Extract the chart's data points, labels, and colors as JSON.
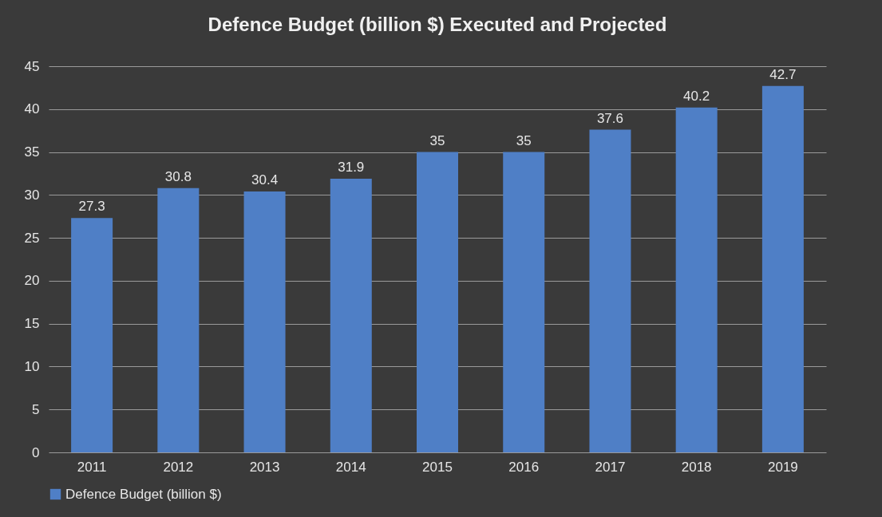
{
  "chart_data": {
    "type": "bar",
    "title": "Defence Budget (billion $) Executed and Projected",
    "categories": [
      "2011",
      "2012",
      "2013",
      "2014",
      "2015",
      "2016",
      "2017",
      "2018",
      "2019"
    ],
    "series": [
      {
        "name": "Defence Budget (billion $)",
        "color": "#4f7fc6",
        "values": [
          27.3,
          30.8,
          30.4,
          31.9,
          35,
          35,
          37.6,
          40.2,
          42.7
        ]
      }
    ],
    "ylim": [
      0,
      45
    ],
    "yticks": [
      0,
      5,
      10,
      15,
      20,
      25,
      30,
      35,
      40,
      45
    ],
    "grid": "y",
    "legend": "bottom",
    "data_labels": true
  }
}
